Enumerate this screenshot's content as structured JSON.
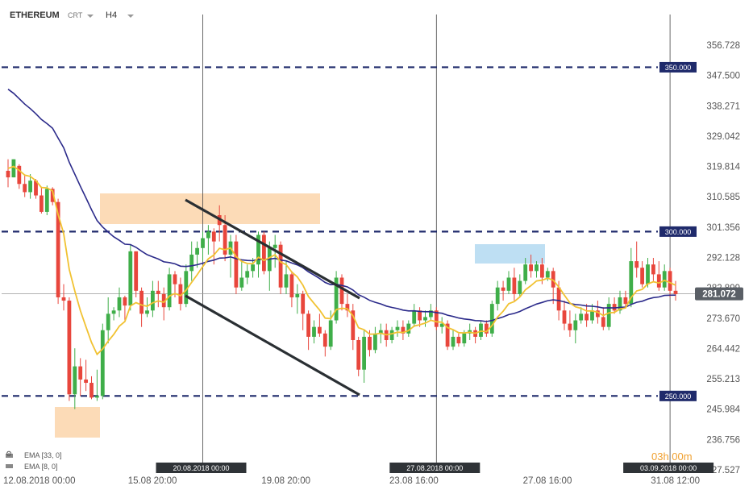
{
  "header": {
    "symbol": "ETHEREUM",
    "type": "CRT",
    "timeframe": "H4"
  },
  "colors": {
    "bull": "#3fae49",
    "bear": "#e8463c",
    "ema_slow": "#2b2a8a",
    "ema_fast": "#f1c232",
    "level_line": "#1f2a6b",
    "label_bg": "#1f2a6b",
    "resistance_box": "#fbd5aa",
    "support_box": "#fbd5aa",
    "blue_box": "#b7dcf2",
    "channel": "#2a2f33",
    "current_bg": "#5a5f66"
  },
  "current_price": "281.072",
  "timer": "03h 00m",
  "legend": [
    {
      "label": "EMA",
      "params": "[33, 0]"
    },
    {
      "label": "EMA",
      "params": "[8, 0]"
    }
  ],
  "markers": [
    {
      "label": "20.08.2018 00:00",
      "index": 35
    },
    {
      "label": "27.08.2018 00:00",
      "index": 77
    },
    {
      "label": "03.09.2018 00:00",
      "index": 119
    }
  ],
  "chart_data": {
    "type": "candlestick",
    "x_tick_labels": [
      {
        "label": "12.08.2018  00:00",
        "index": 0
      },
      {
        "label": "15.08  20:00",
        "index": 23
      },
      {
        "label": "19.08  20:00",
        "index": 47
      },
      {
        "label": "23.08  16:00",
        "index": 70
      },
      {
        "label": "27.08  16:00",
        "index": 94
      },
      {
        "label": "31.08  12:00",
        "index": 117
      }
    ],
    "y_ticks": [
      "356.728",
      "347.500",
      "338.271",
      "329.042",
      "319.814",
      "310.585",
      "301.356",
      "292.128",
      "282.899",
      "273.670",
      "264.442",
      "255.213",
      "245.984",
      "236.756",
      "227.527"
    ],
    "ylim": [
      227.527,
      356.728
    ],
    "levels": [
      {
        "value": 350.0,
        "label": "350.000"
      },
      {
        "value": 300.0,
        "label": "300.000"
      },
      {
        "value": 250.0,
        "label": "250.000"
      }
    ],
    "candles": [
      [
        318.5,
        322.0,
        316.5,
        313.5
      ],
      [
        316.5,
        318.5,
        322.0,
        320.0
      ],
      [
        320.0,
        320.5,
        314.5,
        313.0
      ],
      [
        314.5,
        317.0,
        312.0,
        310.5
      ],
      [
        312.0,
        317.5,
        315.5,
        310.0
      ],
      [
        315.5,
        316.0,
        311.0,
        310.0
      ],
      [
        311.0,
        313.5,
        306.0,
        305.5
      ],
      [
        306.0,
        314.0,
        313.0,
        305.0
      ],
      [
        313.0,
        313.5,
        309.0,
        308.0
      ],
      [
        309.0,
        310.0,
        280.0,
        278.0
      ],
      [
        280.0,
        284.0,
        279.0,
        276.0
      ],
      [
        279.0,
        280.0,
        250.5,
        248.5
      ],
      [
        250.5,
        264.5,
        259.0,
        246.0
      ],
      [
        259.0,
        261.5,
        255.0,
        250.0
      ],
      [
        255.0,
        261.0,
        254.0,
        251.5
      ],
      [
        254.0,
        256.0,
        249.5,
        249.0
      ],
      [
        249.5,
        258.0,
        250.0,
        248.5
      ],
      [
        250.0,
        272.0,
        270.0,
        249.0
      ],
      [
        270.0,
        280.0,
        275.0,
        266.0
      ],
      [
        275.0,
        277.0,
        276.0,
        273.0
      ],
      [
        276.0,
        283.0,
        280.0,
        274.0
      ],
      [
        280.0,
        280.5,
        277.5,
        273.0
      ],
      [
        277.5,
        296.0,
        294.0,
        276.0
      ],
      [
        294.0,
        294.0,
        282.0,
        280.0
      ],
      [
        282.0,
        283.0,
        275.0,
        271.0
      ],
      [
        275.0,
        280.0,
        276.0,
        274.0
      ],
      [
        276.0,
        285.0,
        282.0,
        274.0
      ],
      [
        282.0,
        285.0,
        281.0,
        277.0
      ],
      [
        281.0,
        283.0,
        277.0,
        273.0
      ],
      [
        277.0,
        289.0,
        287.0,
        276.0
      ],
      [
        287.0,
        288.0,
        284.0,
        280.0
      ],
      [
        284.0,
        286.0,
        278.0,
        276.0
      ],
      [
        278.0,
        290.0,
        288.0,
        277.0
      ],
      [
        288.0,
        297.0,
        293.0,
        285.0
      ],
      [
        293.0,
        297.0,
        295.0,
        289.0
      ],
      [
        295.0,
        300.0,
        298.0,
        291.0
      ],
      [
        298.0,
        302.0,
        300.0,
        293.0
      ],
      [
        300.0,
        301.0,
        297.0,
        290.0
      ],
      [
        305.0,
        308.0,
        302.0,
        297.0
      ],
      [
        302.0,
        305.0,
        293.0,
        291.0
      ],
      [
        293.0,
        299.0,
        297.0,
        286.0
      ],
      [
        297.0,
        299.0,
        283.0,
        281.0
      ],
      [
        283.0,
        291.0,
        286.0,
        282.0
      ],
      [
        286.0,
        290.0,
        288.0,
        284.0
      ],
      [
        288.0,
        292.0,
        290.0,
        286.0
      ],
      [
        290.0,
        300.0,
        299.0,
        286.0
      ],
      [
        299.0,
        300.0,
        288.0,
        287.0
      ],
      [
        288.0,
        297.0,
        295.0,
        282.0
      ],
      [
        295.0,
        299.0,
        296.0,
        289.0
      ],
      [
        296.0,
        297.0,
        283.0,
        281.0
      ],
      [
        283.0,
        291.0,
        287.0,
        281.0
      ],
      [
        287.0,
        288.0,
        280.0,
        277.0
      ],
      [
        280.0,
        284.0,
        281.0,
        275.0
      ],
      [
        281.0,
        282.0,
        275.0,
        270.0
      ],
      [
        275.0,
        276.0,
        268.0,
        264.0
      ],
      [
        268.0,
        273.0,
        271.0,
        266.0
      ],
      [
        271.0,
        275.0,
        269.0,
        268.0
      ],
      [
        269.0,
        270.0,
        265.0,
        262.0
      ],
      [
        265.0,
        276.0,
        273.0,
        264.0
      ],
      [
        273.0,
        288.0,
        286.0,
        272.0
      ],
      [
        286.0,
        287.0,
        278.0,
        276.0
      ],
      [
        278.0,
        281.0,
        276.0,
        274.0
      ],
      [
        276.0,
        278.0,
        267.0,
        264.0
      ],
      [
        267.0,
        268.0,
        258.0,
        256.0
      ],
      [
        258.0,
        270.0,
        268.0,
        254.0
      ],
      [
        268.0,
        270.0,
        264.0,
        262.0
      ],
      [
        264.0,
        271.0,
        269.0,
        263.0
      ],
      [
        269.0,
        272.0,
        270.0,
        266.0
      ],
      [
        270.0,
        272.0,
        267.0,
        265.0
      ],
      [
        267.0,
        271.0,
        270.0,
        266.0
      ],
      [
        270.0,
        273.0,
        271.0,
        268.0
      ],
      [
        271.0,
        273.0,
        269.0,
        267.0
      ],
      [
        269.0,
        273.0,
        272.0,
        268.0
      ],
      [
        272.0,
        278.0,
        276.0,
        271.0
      ],
      [
        276.0,
        277.0,
        273.0,
        271.0
      ],
      [
        273.0,
        276.0,
        274.0,
        271.0
      ],
      [
        274.0,
        278.0,
        276.0,
        273.0
      ],
      [
        276.0,
        277.0,
        271.0,
        270.0
      ],
      [
        271.0,
        274.0,
        272.0,
        269.0
      ],
      [
        272.0,
        273.0,
        265.0,
        264.0
      ],
      [
        265.0,
        270.0,
        268.0,
        264.0
      ],
      [
        268.0,
        269.0,
        266.0,
        265.0
      ],
      [
        266.0,
        270.0,
        269.0,
        265.0
      ],
      [
        269.0,
        272.0,
        270.0,
        267.0
      ],
      [
        270.0,
        271.0,
        268.0,
        266.0
      ],
      [
        268.0,
        273.0,
        272.0,
        267.0
      ],
      [
        272.0,
        273.0,
        269.0,
        268.0
      ],
      [
        269.0,
        279.0,
        278.0,
        268.0
      ],
      [
        278.0,
        285.0,
        283.0,
        276.0
      ],
      [
        283.0,
        285.0,
        282.0,
        279.0
      ],
      [
        282.0,
        288.0,
        286.0,
        281.0
      ],
      [
        286.0,
        289.0,
        281.0,
        279.0
      ],
      [
        281.0,
        287.0,
        285.0,
        280.0
      ],
      [
        285.0,
        292.0,
        290.0,
        284.0
      ],
      [
        290.0,
        293.0,
        288.0,
        286.0
      ],
      [
        288.0,
        291.0,
        290.0,
        286.0
      ],
      [
        290.0,
        292.0,
        286.0,
        284.0
      ],
      [
        286.0,
        289.0,
        288.0,
        285.0
      ],
      [
        288.0,
        289.0,
        283.0,
        278.0
      ],
      [
        283.0,
        285.0,
        276.0,
        273.0
      ],
      [
        276.0,
        279.0,
        272.0,
        270.0
      ],
      [
        272.0,
        276.0,
        270.0,
        268.0
      ],
      [
        270.0,
        275.0,
        273.0,
        266.0
      ],
      [
        273.0,
        277.0,
        275.0,
        272.0
      ],
      [
        275.0,
        278.0,
        273.0,
        271.0
      ],
      [
        273.0,
        278.0,
        276.0,
        272.0
      ],
      [
        276.0,
        279.0,
        274.0,
        272.0
      ],
      [
        274.0,
        277.0,
        271.0,
        270.0
      ],
      [
        271.0,
        280.0,
        278.0,
        270.0
      ],
      [
        278.0,
        280.0,
        276.0,
        275.0
      ],
      [
        276.0,
        282.0,
        280.0,
        275.0
      ],
      [
        280.0,
        282.0,
        278.0,
        277.0
      ],
      [
        278.0,
        295.0,
        291.0,
        277.0
      ],
      [
        291.0,
        297.0,
        289.0,
        286.0
      ],
      [
        289.0,
        291.0,
        284.0,
        283.0
      ],
      [
        284.0,
        292.0,
        290.0,
        283.0
      ],
      [
        290.0,
        292.0,
        287.0,
        285.0
      ],
      [
        287.0,
        291.0,
        283.0,
        282.0
      ],
      [
        283.0,
        290.0,
        288.0,
        282.0
      ],
      [
        288.0,
        289.0,
        282.0,
        280.0
      ],
      [
        282.0,
        285.0,
        281.0,
        279.0
      ]
    ]
  }
}
